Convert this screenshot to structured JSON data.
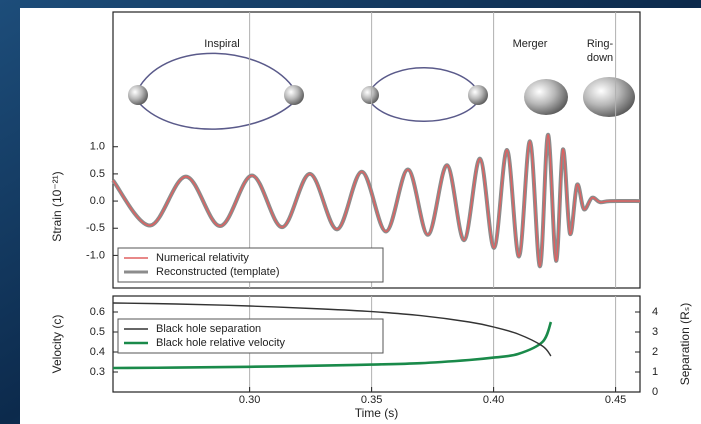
{
  "chart_data": [
    {
      "type": "line",
      "ylabel": "Strain (10⁻²¹)",
      "stages": [
        "Inspiral",
        "Merger",
        "Ring-",
        "down"
      ],
      "x": [
        0.244,
        0.2592,
        0.2739,
        0.2879,
        0.301,
        0.3133,
        0.3247,
        0.3358,
        0.346,
        0.3559,
        0.3649,
        0.3731,
        0.3809,
        0.3879,
        0.3944,
        0.4002,
        0.4055,
        0.4104,
        0.4149,
        0.419,
        0.4223,
        0.4256,
        0.4284,
        0.4313,
        0.4342,
        0.437,
        0.4403,
        0.4436,
        0.4477,
        0.46
      ],
      "series": [
        {
          "name": "Numerical relativity",
          "color": "#e06060",
          "values": [
            0.38,
            -0.45,
            0.45,
            -0.46,
            0.47,
            -0.48,
            0.5,
            -0.52,
            0.54,
            -0.56,
            0.58,
            -0.62,
            0.66,
            -0.72,
            0.78,
            -0.86,
            0.94,
            -1.02,
            1.1,
            -1.2,
            1.22,
            -1.1,
            0.95,
            -0.6,
            0.3,
            -0.15,
            0.06,
            -0.02,
            0,
            0
          ]
        },
        {
          "name": "Reconstructed (template)",
          "color": "#8c8c8c",
          "values": [
            0.38,
            -0.45,
            0.45,
            -0.46,
            0.47,
            -0.48,
            0.5,
            -0.52,
            0.54,
            -0.56,
            0.58,
            -0.62,
            0.66,
            -0.72,
            0.78,
            -0.86,
            0.94,
            -1.02,
            1.1,
            -1.2,
            1.22,
            -1.1,
            0.95,
            -0.6,
            0.3,
            -0.15,
            0.06,
            -0.02,
            0,
            0
          ]
        }
      ],
      "xlim": [
        0.244,
        0.46
      ],
      "ylim": [
        -1.6,
        1.4
      ],
      "yticks": [
        {
          "value": 1,
          "label": "1.0"
        },
        0.5,
        {
          "value": 0,
          "label": "0.0"
        },
        -0.5,
        {
          "value": -1,
          "label": "-1.0"
        }
      ],
      "legend": "lower left"
    },
    {
      "type": "line",
      "xlabel": "Time (s)",
      "ylabel": "Velocity (c)",
      "y2label": "Separation (Rₛ)",
      "x": [
        0.244,
        0.27,
        0.3,
        0.33,
        0.35,
        0.37,
        0.39,
        0.4,
        0.41,
        0.42,
        0.4235
      ],
      "series": [
        {
          "name": "Black hole separation",
          "color": "#333333",
          "axis": "y2",
          "values": [
            4.45,
            4.4,
            4.3,
            4.15,
            4.02,
            3.82,
            3.5,
            3.25,
            2.9,
            2.3,
            1.8
          ]
        },
        {
          "name": "Black hole relative velocity",
          "color": "#1a8a4a",
          "values": [
            0.32,
            0.322,
            0.326,
            0.332,
            0.337,
            0.344,
            0.36,
            0.372,
            0.39,
            0.45,
            0.55
          ]
        }
      ],
      "xlim": [
        0.244,
        0.46
      ],
      "xticks": [
        {
          "value": 0.3,
          "label": "0.30"
        },
        0.35,
        {
          "value": 0.4,
          "label": "0.40"
        },
        0.45
      ],
      "ylim": [
        0.2,
        0.68
      ],
      "yticks": [
        0.3,
        0.4,
        0.5,
        0.6
      ],
      "y2lim": [
        0,
        4.8
      ],
      "y2ticks": [
        0,
        1,
        2,
        3,
        4
      ],
      "legend": "center left"
    }
  ]
}
